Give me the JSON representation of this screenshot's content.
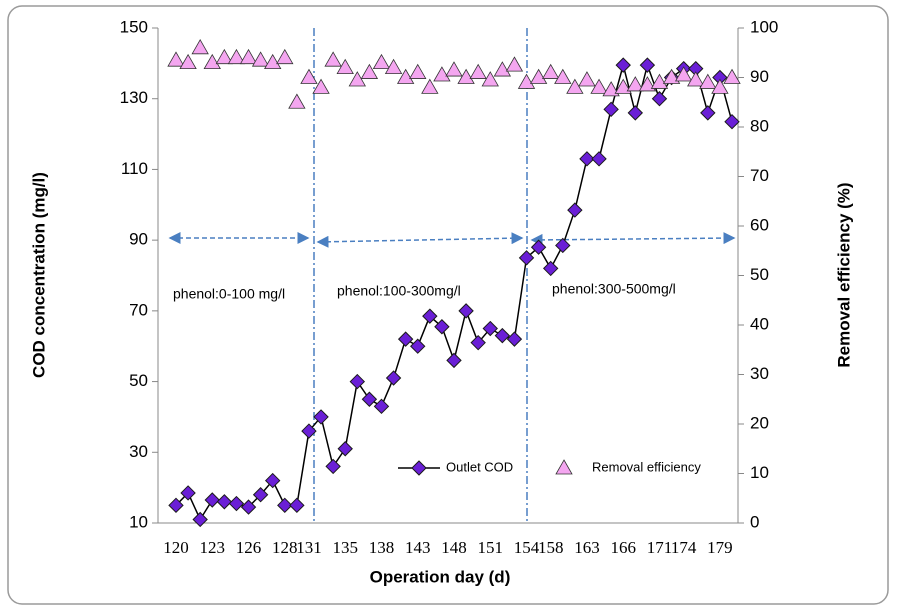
{
  "chart_data": {
    "type": "line",
    "xlabel": "Operation day (d)",
    "ylabel": "COD concentration (mg/l)",
    "y2label": "Removal efficiency (%)",
    "categories": [
      "120",
      null,
      null,
      "123",
      null,
      null,
      "126",
      null,
      null,
      "128",
      null,
      "131",
      null,
      null,
      "135",
      null,
      null,
      "138",
      null,
      null,
      "143",
      null,
      null,
      "148",
      null,
      null,
      "151",
      null,
      null,
      "154",
      null,
      "158",
      null,
      null,
      "163",
      null,
      null,
      "166",
      null,
      null,
      "171",
      null,
      "174",
      null,
      null,
      "179",
      null
    ],
    "series": [
      {
        "name": "Outlet COD",
        "color": "#6a1fd6",
        "marker": "diamond",
        "values": [
          15,
          18.5,
          11,
          16.5,
          16,
          15.5,
          14.5,
          18,
          22,
          15,
          15,
          36,
          40,
          26,
          31,
          50,
          45,
          43,
          51,
          62,
          60,
          68.5,
          65.5,
          56,
          70,
          61,
          65,
          63,
          62,
          85,
          88,
          82,
          88.5,
          98.5,
          113,
          113,
          127,
          139.5,
          126,
          139.5,
          130,
          136,
          138.5,
          138.5,
          126,
          136,
          123.5
        ]
      },
      {
        "name": "Removal efficiency",
        "color": "#f4a6f0",
        "marker": "triangle",
        "axis": "y2",
        "values": [
          93.5,
          93,
          96,
          93,
          94,
          94,
          94,
          93.5,
          93,
          94,
          85,
          90,
          88,
          93.5,
          92,
          89.5,
          91,
          93,
          92,
          90,
          91,
          88,
          90.5,
          91.5,
          90,
          91,
          89.5,
          91.5,
          92.5,
          89,
          90,
          91,
          90,
          88,
          89.5,
          88,
          87.5,
          88,
          88.5,
          88.5,
          89,
          90,
          90.5,
          89.5,
          89,
          88,
          90
        ]
      }
    ],
    "ylim": [
      10,
      150
    ],
    "yticks": [
      10,
      30,
      50,
      70,
      90,
      110,
      130,
      150
    ],
    "y2lim": [
      0,
      100
    ],
    "y2ticks": [
      0,
      10,
      20,
      30,
      40,
      50,
      60,
      70,
      80,
      90,
      100
    ],
    "annotations": [
      "phenol:0-100 mg/l",
      "phenol:100-300mg/l",
      "phenol:300-500mg/l"
    ],
    "legend": "lower right"
  }
}
